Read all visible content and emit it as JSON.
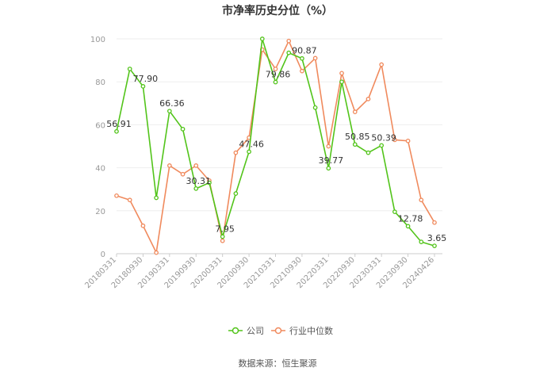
{
  "chart_data": {
    "type": "line",
    "title": "市净率历史分位（%）",
    "xlabel": "",
    "ylabel": "",
    "ylim": [
      0,
      100
    ],
    "yticks": [
      0,
      20,
      40,
      60,
      80,
      100
    ],
    "grid": true,
    "legend_position": "bottom",
    "x": [
      "20180331",
      "",
      "20180930",
      "",
      "20190331",
      "",
      "20190930",
      "",
      "20200331",
      "",
      "20200930",
      "",
      "20210331",
      "",
      "20210930",
      "",
      "20220331",
      "",
      "20220930",
      "",
      "20230331",
      "",
      "20230930",
      "",
      "20240426"
    ],
    "x_tick_labels": [
      "20180331",
      "20180930",
      "20190331",
      "20190930",
      "20200331",
      "20200930",
      "20210331",
      "20210930",
      "20220331",
      "20220930",
      "20230331",
      "20230930",
      "20240426"
    ],
    "series": [
      {
        "name": "公司",
        "color": "#52c41a",
        "values": [
          56.91,
          86,
          77.9,
          26,
          66.36,
          58,
          30.31,
          33,
          7.95,
          28,
          47.46,
          100,
          79.86,
          93.5,
          90.87,
          68,
          39.77,
          80,
          50.85,
          47,
          50.39,
          19.5,
          12.78,
          5.5,
          3.65
        ],
        "labels": {
          "0": "56.91",
          "2": "77.90",
          "4": "66.36",
          "6": "30.31",
          "8": "7.95",
          "10": "47.46",
          "12": "79.86",
          "14": "90.87",
          "16": "39.77",
          "18": "50.85",
          "20": "50.39",
          "22": "12.78",
          "24": "3.65"
        }
      },
      {
        "name": "行业中位数",
        "color": "#f08a5d",
        "values": [
          27,
          25,
          13,
          0.5,
          41,
          37,
          41,
          34,
          6,
          47,
          54,
          95,
          86,
          99,
          85,
          91,
          50,
          84,
          66,
          72,
          88,
          53,
          52.5,
          25,
          14.5
        ],
        "labels": {}
      }
    ]
  },
  "source": "数据来源：恒生聚源"
}
